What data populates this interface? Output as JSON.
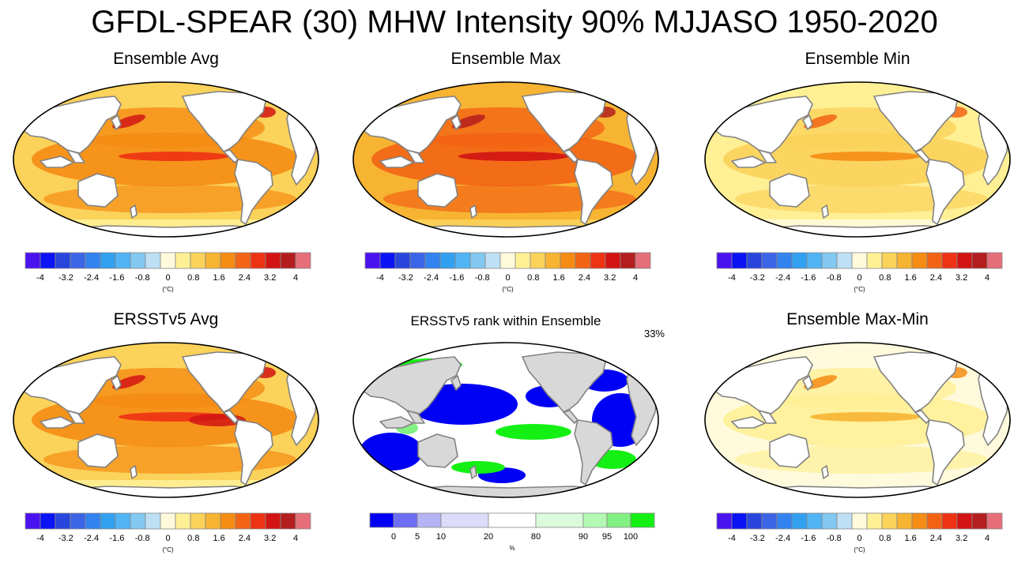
{
  "title": "GFDL-SPEAR (30) MHW Intensity 90% MJJASO 1950-2020",
  "colors": {
    "temp_scale": [
      "#4b12f0",
      "#0a14f5",
      "#2846dc",
      "#3c64e6",
      "#3282f0",
      "#32a0f0",
      "#50b4f5",
      "#82c8f0",
      "#bee0f5",
      "#fffadc",
      "#fff096",
      "#fbd25a",
      "#f7b432",
      "#f58c14",
      "#f26414",
      "#ee3214",
      "#d21414",
      "#b41e1e",
      "#e66e78"
    ],
    "rank_scale": [
      "#0000f5",
      "#6e6ef5",
      "#b4b4f5",
      "#dcdcfa",
      "#ffffff",
      "#dcfadc",
      "#b4fab4",
      "#82f082",
      "#14f014"
    ],
    "land": "#ffffff",
    "land_rank": "#d8d8d8",
    "coast": "#828282"
  },
  "temp_colorbar": {
    "labels": [
      "-4",
      "-3.2",
      "-2.4",
      "-1.6",
      "-0.8",
      "0",
      "0.8",
      "1.6",
      "2.4",
      "3.2",
      "4"
    ],
    "unit": "(°C)"
  },
  "rank_colorbar": {
    "labels": [
      "0",
      "5",
      "10",
      "20",
      "80",
      "90",
      "95",
      "100"
    ],
    "unit": "%"
  },
  "panels": [
    {
      "id": "avg",
      "title": "Ensemble Avg",
      "type": "temp",
      "intensity": "medium"
    },
    {
      "id": "max",
      "title": "Ensemble Max",
      "type": "temp",
      "intensity": "high"
    },
    {
      "id": "min",
      "title": "Ensemble Min",
      "type": "temp",
      "intensity": "low"
    },
    {
      "id": "ersst",
      "title": "ERSSTv5 Avg",
      "type": "temp",
      "intensity": "medium"
    },
    {
      "id": "rank",
      "title": "ERSSTv5 rank within Ensemble",
      "type": "rank",
      "percent": "33%"
    },
    {
      "id": "range",
      "title": "Ensemble Max-Min",
      "type": "temp",
      "intensity": "faint"
    }
  ]
}
